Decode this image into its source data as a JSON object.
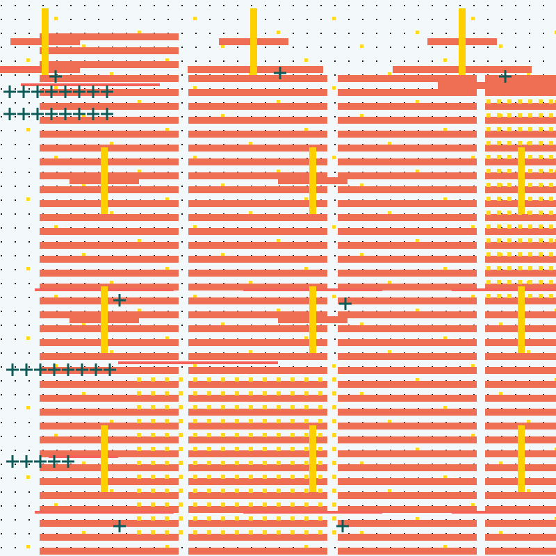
{
  "colors": {
    "background": "#f3f9fb",
    "dot": "#1a1a1a",
    "stripe": "#ef6f55",
    "long_stripe": "#f4625a",
    "yellow_square": "#ffd91a",
    "yellow_bar": "#ffd000",
    "cross": "#0d5a57"
  },
  "elements": {
    "dot_grid": "dot-grid",
    "stripe_columns": [
      "stripe-column-1",
      "stripe-column-2",
      "stripe-column-3",
      "stripe-column-4"
    ],
    "icons": [
      "cross-icon"
    ]
  }
}
